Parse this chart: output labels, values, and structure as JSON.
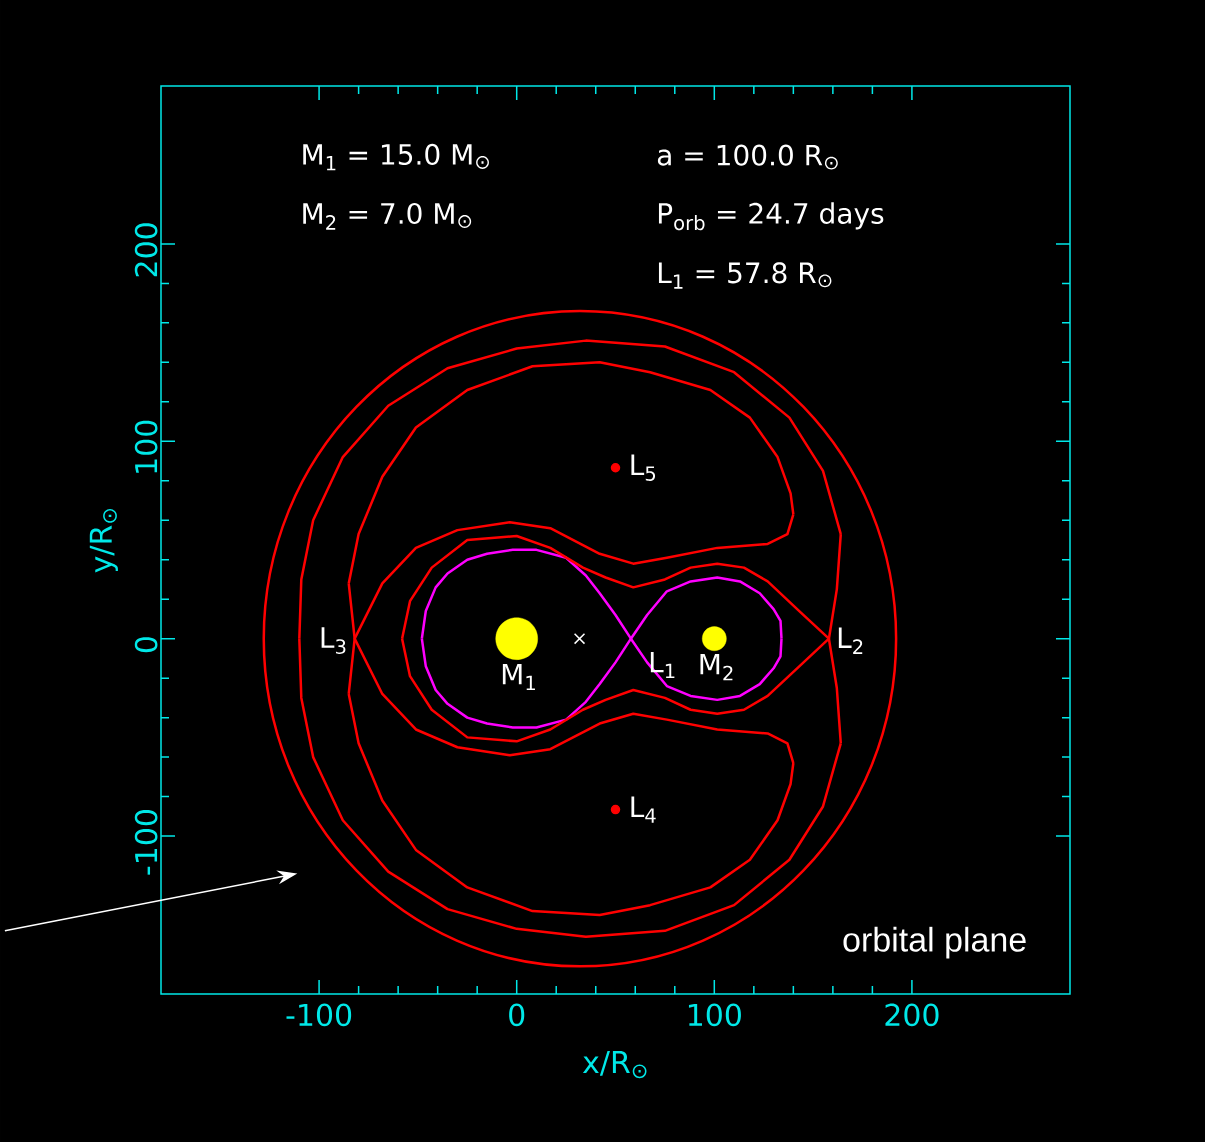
{
  "chart_data": {
    "type": "line",
    "xlabel": "x/R$_{⊙}$",
    "ylabel": "y/R$_{⊙}$",
    "xlim": [
      -180,
      280
    ],
    "ylim": [
      -180,
      280
    ],
    "xticks": [
      -100,
      0,
      100,
      200
    ],
    "yticks": [
      -100,
      0,
      100,
      200
    ],
    "series": [
      {
        "color": "#ff00ff",
        "x": [
          -48,
          -46,
          -41,
          -35,
          -25,
          -15,
          -2,
          10,
          25,
          35,
          42,
          50,
          57.8,
          66,
          76,
          88,
          101.5,
          113,
          123,
          130,
          133.5,
          134
        ],
        "values": [
          0,
          14,
          26,
          33,
          40,
          43,
          45,
          45,
          41,
          32,
          23,
          12,
          0,
          12,
          24,
          29,
          31,
          29,
          23,
          15,
          9,
          0
        ]
      },
      {
        "color": "#ff00ff",
        "x": [
          -48,
          -46,
          -41,
          -35,
          -25,
          -15,
          -2,
          10,
          25,
          35,
          42,
          50,
          57.8,
          66,
          76,
          88,
          101.5,
          113,
          123,
          130,
          133.5,
          134
        ],
        "values": [
          0,
          -14,
          -26,
          -33,
          -40,
          -43,
          -45,
          -45,
          -41,
          -32,
          -23,
          -12,
          0,
          -12,
          -24,
          -29,
          -31,
          -29,
          -23,
          -15,
          -9,
          0
        ]
      },
      {
        "color": "#ff0000",
        "x": [
          -58,
          -54,
          -43,
          -25,
          0,
          17,
          33.5,
          45,
          59,
          75,
          88,
          101.5,
          115,
          127,
          143,
          158,
          162,
          164
        ],
        "values": [
          0,
          19,
          36,
          50,
          52,
          46,
          36,
          31,
          26,
          30,
          36,
          38,
          36,
          29,
          14,
          0,
          -25,
          -53
        ]
      },
      {
        "color": "#ff0000",
        "x": [
          -58,
          -54,
          -43,
          -25,
          0,
          17,
          33.5,
          45,
          59,
          75,
          88,
          101.5,
          115,
          127,
          143,
          158,
          162,
          164
        ],
        "values": [
          0,
          -19,
          -36,
          -50,
          -52,
          -46,
          -36,
          -31,
          -26,
          -30,
          -36,
          -38,
          -36,
          -29,
          -14,
          0,
          25,
          53
        ]
      },
      {
        "color": "#ff0000",
        "x": [
          -110,
          -109,
          -103,
          -88,
          -65,
          -35,
          0,
          35,
          75,
          110,
          138,
          155,
          164
        ],
        "values": [
          0,
          30,
          60,
          92,
          118,
          137,
          147,
          151,
          148,
          135,
          112,
          85,
          53
        ]
      },
      {
        "color": "#ff0000",
        "x": [
          -110,
          -109,
          -103,
          -88,
          -65,
          -35,
          0,
          35,
          75,
          110,
          138,
          155,
          164
        ],
        "values": [
          0,
          -30,
          -60,
          -92,
          -118,
          -137,
          -147,
          -151,
          -148,
          -135,
          -112,
          -85,
          -53
        ]
      },
      {
        "color": "#ff0000",
        "x": [
          -85,
          -82,
          -68,
          -51,
          -30,
          -3.5,
          17,
          42,
          59,
          76,
          101.5,
          127,
          137,
          140
        ],
        "values": [
          -28,
          0,
          28,
          46,
          55,
          59,
          56,
          43,
          38,
          41,
          46,
          48,
          53,
          63
        ]
      },
      {
        "color": "#ff0000",
        "x": [
          -85,
          -82,
          -68,
          -51,
          -30,
          -3.5,
          17,
          42,
          59,
          76,
          101.5,
          127,
          137,
          140
        ],
        "values": [
          28,
          0,
          -28,
          -46,
          -55,
          -59,
          -56,
          -43,
          -38,
          -41,
          -46,
          -48,
          -53,
          -63
        ]
      },
      {
        "color": "#ff0000",
        "x": [
          -85,
          -80,
          -68,
          -51,
          -25,
          8,
          42,
          67.5,
          98,
          118,
          132,
          138.6,
          140
        ],
        "values": [
          28,
          53,
          82,
          107,
          126,
          138,
          140,
          135,
          126,
          112,
          92,
          73.6,
          63
        ]
      },
      {
        "color": "#ff0000",
        "x": [
          -85,
          -80,
          -68,
          -51,
          -25,
          8,
          42,
          67.5,
          98,
          118,
          132,
          138.6,
          140
        ],
        "values": [
          -28,
          -53,
          -82,
          -107,
          -126,
          -138,
          -140,
          -135,
          -126,
          -112,
          -92,
          -73.6,
          -63
        ]
      },
      {
        "type": "bubble",
        "color": "#ffff00",
        "x": [
          0,
          100
        ],
        "values": [
          0,
          0
        ],
        "sizes": [
          1,
          0.33
        ]
      },
      {
        "type": "scatter",
        "color": "#ff0000",
        "marker": "circle",
        "x": [
          50,
          50
        ],
        "values": [
          -86.6,
          86.6
        ]
      },
      {
        "type": "scatter",
        "color": "#ffffff",
        "marker": "cross",
        "x": [
          31.8
        ],
        "values": [
          0
        ]
      }
    ],
    "annotations": [
      "M$_{1}$ = 15.0 M$_{⊙}$",
      "M$_{2}$ = 7.0 M$_{⊙}$",
      "a = 100.0 R$_{⊙}$",
      "P$_{orb}$ =  24.7 days",
      "L$_{1}$ = 57.8 R$_{⊙}$",
      "orbital plane",
      {
        "text": "M$_{1}$",
        "x": 0,
        "y": 0
      },
      {
        "text": "M$_{2}$",
        "x": 100,
        "y": 0
      },
      {
        "text": "L$_{1}$",
        "x": 57.8,
        "y": 0
      },
      {
        "text": "L$_{2}$",
        "x": 158,
        "y": 0
      },
      {
        "text": "L$_{3}$",
        "x": -82,
        "y": 0
      },
      {
        "text": "L$_{4}$",
        "x": 50,
        "y": -86.6
      },
      {
        "text": "L$_{5}$",
        "x": 50,
        "y": 86.6
      }
    ]
  }
}
